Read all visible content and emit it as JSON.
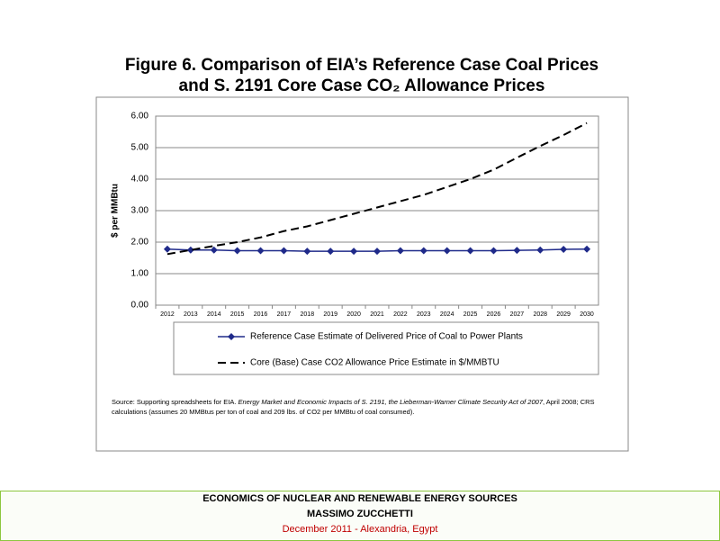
{
  "chart_data": {
    "type": "line",
    "title": [
      "Figure 6. Comparison of EIA’s Reference Case Coal Prices",
      "and S. 2191 Core Case CO₂ Allowance Prices"
    ],
    "y_label": "$ per MMBtu",
    "categories": [
      "2012",
      "2013",
      "2014",
      "2015",
      "2016",
      "2017",
      "2018",
      "2019",
      "2020",
      "2021",
      "2022",
      "2023",
      "2024",
      "2025",
      "2026",
      "2027",
      "2028",
      "2029",
      "2030"
    ],
    "series": [
      {
        "name": "Reference Case Estimate of Delivered Price of Coal to Power Plants",
        "color": "#1f2a8a",
        "dash": false,
        "marker": "diamond",
        "values": [
          1.78,
          1.75,
          1.75,
          1.73,
          1.73,
          1.73,
          1.71,
          1.71,
          1.71,
          1.71,
          1.73,
          1.73,
          1.73,
          1.73,
          1.73,
          1.74,
          1.75,
          1.77,
          1.78
        ]
      },
      {
        "name": "Core (Base) Case CO2 Allowance Price Estimate in $/MMBTU",
        "color": "#000000",
        "dash": true,
        "marker": null,
        "values": [
          1.62,
          1.75,
          1.88,
          2.0,
          2.15,
          2.35,
          2.5,
          2.7,
          2.9,
          3.1,
          3.3,
          3.5,
          3.75,
          4.0,
          4.3,
          4.68,
          5.05,
          5.4,
          5.78
        ]
      }
    ],
    "ylim": [
      0,
      6
    ],
    "yticks": [
      {
        "value": 0,
        "label": "0.00"
      },
      {
        "value": 1,
        "label": "1.00"
      },
      {
        "value": 2,
        "label": "2.00"
      },
      {
        "value": 3,
        "label": "3.00"
      },
      {
        "value": 4,
        "label": "4.00"
      },
      {
        "value": 5,
        "label": "5.00"
      },
      {
        "value": 6,
        "label": "6.00"
      }
    ],
    "grid": true,
    "source": [
      "Source: Supporting spreadsheets for EIA. ",
      "Energy Market and Economic Impacts of S. 2191, the Lieberman-Warner Climate Security Act of 2007",
      ", April 2008; CRS calculations (assumes 20 MMBtus per ton of coal and 209 lbs. of CO2 per MMBtu of coal consumed)."
    ]
  },
  "footer": [
    "ECONOMICS OF NUCLEAR AND RENEWABLE ENERGY SOURCES",
    "MASSIMO ZUCCHETTI",
    "December 2011 - Alexandria, Egypt"
  ]
}
